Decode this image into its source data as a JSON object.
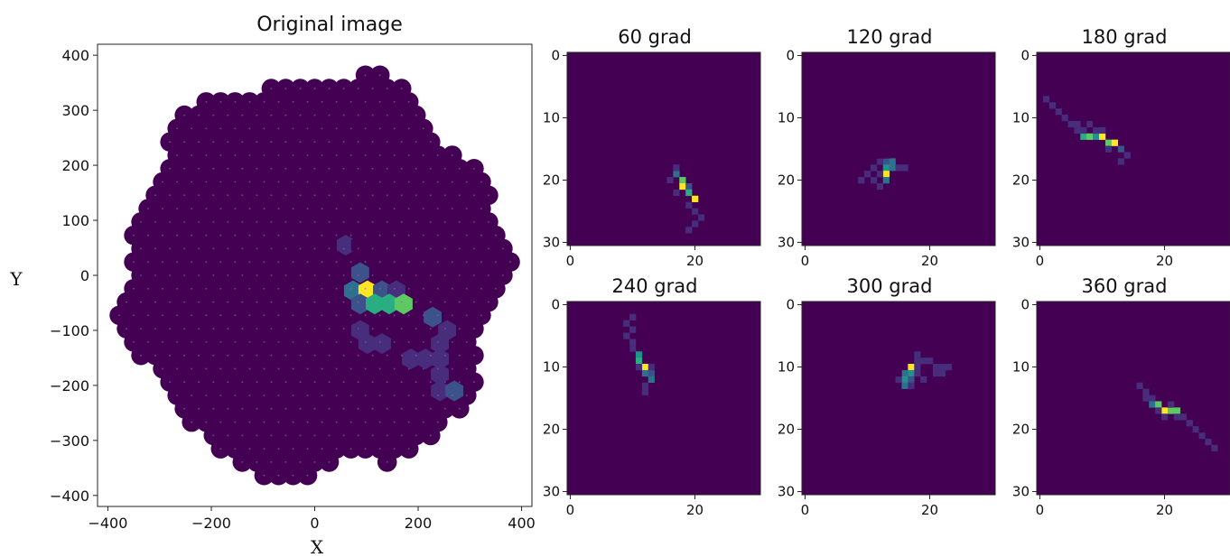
{
  "colors": {
    "background": "#440154",
    "cell_low": "#46307e",
    "cell_mid_low": "#3b518b",
    "cell_mid": "#2c728e",
    "cell_teal": "#21918c",
    "cell_green": "#5ec962",
    "cell_yellow": "#fde725"
  },
  "chart_data": [
    {
      "type": "scatter",
      "title": "Original image",
      "xlabel": "X",
      "ylabel": "Y",
      "xlim": [
        -420,
        420
      ],
      "ylim": [
        -420,
        420
      ],
      "xticks": [
        -400,
        -200,
        0,
        200,
        400
      ],
      "yticks": [
        400,
        300,
        200,
        100,
        0,
        -100,
        -200,
        -300,
        -400
      ],
      "xtick_labels": [
        "−400",
        "−200",
        "0",
        "200",
        "400"
      ],
      "ytick_labels": [
        "400",
        "300",
        "200",
        "100",
        "0",
        "−100",
        "−200",
        "−300",
        "−400"
      ],
      "hex_pitch": 28,
      "active_pixels": [
        {
          "x": 60,
          "y": 55,
          "v": 0.22
        },
        {
          "x": 88,
          "y": 55,
          "v": 0.12
        },
        {
          "x": 60,
          "y": 5,
          "v": 0.12
        },
        {
          "x": 88,
          "y": 5,
          "v": 0.3
        },
        {
          "x": 74,
          "y": -28,
          "v": 0.55
        },
        {
          "x": 102,
          "y": -28,
          "v": 1.0
        },
        {
          "x": 130,
          "y": -28,
          "v": 0.3
        },
        {
          "x": 158,
          "y": -28,
          "v": 0.22
        },
        {
          "x": 88,
          "y": -52,
          "v": 0.3
        },
        {
          "x": 116,
          "y": -52,
          "v": 0.78
        },
        {
          "x": 144,
          "y": -52,
          "v": 0.78
        },
        {
          "x": 172,
          "y": -52,
          "v": 0.98
        },
        {
          "x": 228,
          "y": -76,
          "v": 0.32
        },
        {
          "x": 88,
          "y": -100,
          "v": 0.15
        },
        {
          "x": 200,
          "y": -100,
          "v": 0.12
        },
        {
          "x": 256,
          "y": -100,
          "v": 0.15
        },
        {
          "x": 102,
          "y": -124,
          "v": 0.15
        },
        {
          "x": 130,
          "y": -124,
          "v": 0.28
        },
        {
          "x": 242,
          "y": -124,
          "v": 0.2
        },
        {
          "x": 186,
          "y": -152,
          "v": 0.15
        },
        {
          "x": 214,
          "y": -152,
          "v": 0.15
        },
        {
          "x": 242,
          "y": -152,
          "v": 0.15
        },
        {
          "x": 242,
          "y": -180,
          "v": 0.15
        },
        {
          "x": 242,
          "y": -210,
          "v": 0.2
        },
        {
          "x": 270,
          "y": -210,
          "v": 0.32
        }
      ]
    },
    {
      "type": "heatmap",
      "title": "60 grad",
      "xticks": [
        0,
        20
      ],
      "yticks": [
        0,
        10,
        20,
        30
      ],
      "size": 31,
      "cells": [
        [
          17,
          19,
          0.55
        ],
        [
          18,
          20,
          0.85
        ],
        [
          18,
          21,
          1.0
        ],
        [
          19,
          21,
          0.35
        ],
        [
          19,
          22,
          0.75
        ],
        [
          20,
          23,
          1.0
        ],
        [
          17,
          18,
          0.2
        ],
        [
          16,
          20,
          0.15
        ],
        [
          17,
          22,
          0.15
        ],
        [
          19,
          24,
          0.15
        ],
        [
          20,
          25,
          0.2
        ],
        [
          21,
          26,
          0.15
        ],
        [
          20,
          27,
          0.15
        ],
        [
          19,
          28,
          0.15
        ],
        [
          21,
          28,
          0.12
        ],
        [
          16,
          21,
          0.1
        ]
      ]
    },
    {
      "type": "heatmap",
      "title": "120 grad",
      "xticks": [
        0,
        20
      ],
      "yticks": [
        0,
        10,
        20,
        30
      ],
      "size": 31,
      "cells": [
        [
          13,
          17,
          0.35
        ],
        [
          14,
          17,
          0.55
        ],
        [
          13,
          18,
          0.65
        ],
        [
          13,
          19,
          1.0
        ],
        [
          14,
          18,
          0.45
        ],
        [
          13,
          20,
          0.55
        ],
        [
          12,
          19,
          0.2
        ],
        [
          11,
          18,
          0.15
        ],
        [
          10,
          19,
          0.15
        ],
        [
          11,
          20,
          0.2
        ],
        [
          9,
          20,
          0.15
        ],
        [
          12,
          17,
          0.15
        ],
        [
          15,
          18,
          0.2
        ],
        [
          16,
          18,
          0.15
        ],
        [
          12,
          21,
          0.15
        ],
        [
          11,
          16,
          0.12
        ],
        [
          12,
          16,
          0.12
        ],
        [
          13,
          16,
          0.12
        ]
      ]
    },
    {
      "type": "heatmap",
      "title": "180 grad",
      "xticks": [
        0,
        20
      ],
      "yticks": [
        0,
        10,
        20,
        30
      ],
      "size": 31,
      "cells": [
        [
          1,
          7,
          0.15
        ],
        [
          2,
          8,
          0.15
        ],
        [
          3,
          9,
          0.2
        ],
        [
          4,
          10,
          0.15
        ],
        [
          5,
          11,
          0.2
        ],
        [
          6,
          12,
          0.2
        ],
        [
          7,
          13,
          0.75
        ],
        [
          8,
          13,
          0.85
        ],
        [
          9,
          13,
          0.6
        ],
        [
          10,
          13,
          1.0
        ],
        [
          11,
          14,
          0.9
        ],
        [
          12,
          14,
          1.0
        ],
        [
          13,
          15,
          0.3
        ],
        [
          14,
          16,
          0.15
        ],
        [
          7,
          12,
          0.15
        ],
        [
          9,
          12,
          0.2
        ],
        [
          6,
          11,
          0.15
        ],
        [
          8,
          11,
          0.15
        ],
        [
          9,
          11,
          0.12
        ],
        [
          11,
          15,
          0.15
        ],
        [
          13,
          17,
          0.15
        ],
        [
          10,
          12,
          0.15
        ]
      ]
    },
    {
      "type": "heatmap",
      "title": "240 grad",
      "xticks": [
        0,
        20
      ],
      "yticks": [
        0,
        10,
        20,
        30
      ],
      "size": 31,
      "cells": [
        [
          10,
          2,
          0.15
        ],
        [
          9,
          3,
          0.15
        ],
        [
          10,
          4,
          0.15
        ],
        [
          9,
          5,
          0.2
        ],
        [
          10,
          6,
          0.15
        ],
        [
          11,
          5,
          0.12
        ],
        [
          10,
          7,
          0.2
        ],
        [
          11,
          8,
          0.6
        ],
        [
          11,
          9,
          0.75
        ],
        [
          12,
          10,
          1.0
        ],
        [
          12,
          11,
          0.5
        ],
        [
          13,
          11,
          0.35
        ],
        [
          13,
          12,
          0.55
        ],
        [
          12,
          13,
          0.2
        ],
        [
          12,
          14,
          0.15
        ],
        [
          11,
          10,
          0.2
        ],
        [
          13,
          10,
          0.15
        ],
        [
          9,
          7,
          0.12
        ]
      ]
    },
    {
      "type": "heatmap",
      "title": "300 grad",
      "xticks": [
        0,
        20
      ],
      "yticks": [
        0,
        10,
        20,
        30
      ],
      "size": 31,
      "cells": [
        [
          17,
          10,
          1.0
        ],
        [
          17,
          11,
          0.7
        ],
        [
          16,
          11,
          0.55
        ],
        [
          16,
          12,
          0.6
        ],
        [
          17,
          12,
          0.35
        ],
        [
          16,
          13,
          0.45
        ],
        [
          17,
          13,
          0.15
        ],
        [
          15,
          12,
          0.15
        ],
        [
          18,
          9,
          0.2
        ],
        [
          19,
          9,
          0.2
        ],
        [
          20,
          9,
          0.15
        ],
        [
          18,
          10,
          0.2
        ],
        [
          21,
          10,
          0.15
        ],
        [
          22,
          10,
          0.2
        ],
        [
          23,
          10,
          0.15
        ],
        [
          18,
          11,
          0.15
        ],
        [
          19,
          12,
          0.15
        ],
        [
          20,
          11,
          0.12
        ],
        [
          21,
          11,
          0.15
        ],
        [
          22,
          11,
          0.15
        ],
        [
          18,
          8,
          0.15
        ],
        [
          15,
          11,
          0.1
        ]
      ]
    },
    {
      "type": "heatmap",
      "title": "360 grad",
      "xticks": [
        0,
        20
      ],
      "yticks": [
        0,
        10,
        20,
        30
      ],
      "size": 31,
      "cells": [
        [
          16,
          13,
          0.15
        ],
        [
          17,
          14,
          0.15
        ],
        [
          18,
          15,
          0.2
        ],
        [
          18,
          16,
          0.55
        ],
        [
          19,
          16,
          0.85
        ],
        [
          20,
          17,
          1.0
        ],
        [
          21,
          17,
          0.85
        ],
        [
          22,
          17,
          0.9
        ],
        [
          19,
          17,
          0.2
        ],
        [
          20,
          18,
          0.15
        ],
        [
          23,
          18,
          0.15
        ],
        [
          24,
          19,
          0.15
        ],
        [
          25,
          20,
          0.15
        ],
        [
          26,
          21,
          0.15
        ],
        [
          27,
          22,
          0.15
        ],
        [
          28,
          23,
          0.2
        ],
        [
          17,
          15,
          0.15
        ],
        [
          21,
          16,
          0.15
        ],
        [
          22,
          18,
          0.15
        ],
        [
          26,
          20,
          0.12
        ]
      ]
    }
  ]
}
